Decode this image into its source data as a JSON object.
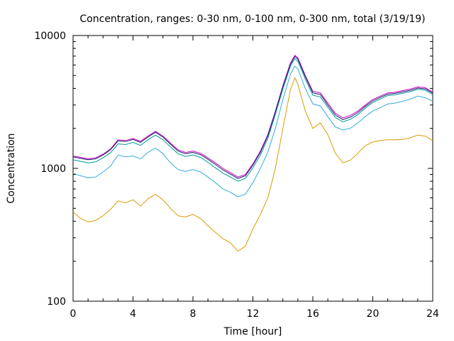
{
  "chart_data": {
    "type": "line",
    "title": "Concentration, ranges: 0-30 nm, 0-100 nm, 0-300 nm, total (3/19/19)",
    "xlabel": "Time [hour]",
    "ylabel": "Concentration",
    "xlim": [
      0,
      24
    ],
    "ylim": [
      100,
      10000
    ],
    "yscale": "log",
    "xticks": [
      0,
      4,
      8,
      12,
      16,
      20,
      24
    ],
    "yticks": [
      100,
      1000,
      10000
    ],
    "xtick_labels": [
      "0",
      "4",
      "8",
      "12",
      "16",
      "20",
      "24"
    ],
    "ytick_labels": [
      "100",
      "1000",
      "10000"
    ],
    "grid": false,
    "x": [
      0,
      0.5,
      1,
      1.5,
      2,
      2.5,
      3,
      3.5,
      4,
      4.5,
      5,
      5.5,
      6,
      6.5,
      7,
      7.5,
      8,
      8.5,
      9,
      9.5,
      10,
      10.5,
      11,
      11.5,
      12,
      12.5,
      13,
      13.5,
      14,
      14.5,
      14.8,
      15,
      15.5,
      16,
      16.5,
      17,
      17.5,
      18,
      18.5,
      19,
      19.5,
      20,
      20.5,
      21,
      21.5,
      22,
      22.5,
      23,
      23.5,
      24
    ],
    "series": [
      {
        "color": "#cc00cc",
        "values": [
          1240,
          1210,
          1180,
          1200,
          1280,
          1400,
          1640,
          1620,
          1680,
          1600,
          1750,
          1900,
          1750,
          1550,
          1380,
          1320,
          1350,
          1300,
          1200,
          1100,
          1000,
          930,
          860,
          900,
          1080,
          1350,
          1800,
          2700,
          4200,
          6200,
          7100,
          6800,
          5000,
          3800,
          3700,
          3100,
          2600,
          2400,
          2500,
          2700,
          3000,
          3300,
          3500,
          3700,
          3750,
          3850,
          3950,
          4100,
          4050,
          3750
        ]
      },
      {
        "color": "#1a1a66",
        "values": [
          1220,
          1190,
          1160,
          1180,
          1260,
          1380,
          1610,
          1590,
          1650,
          1570,
          1720,
          1870,
          1720,
          1520,
          1350,
          1290,
          1320,
          1270,
          1170,
          1070,
          975,
          905,
          840,
          880,
          1060,
          1320,
          1760,
          2650,
          4100,
          6050,
          6950,
          6650,
          4900,
          3700,
          3600,
          3000,
          2520,
          2330,
          2430,
          2630,
          2930,
          3220,
          3420,
          3620,
          3670,
          3770,
          3870,
          4020,
          3970,
          3680
        ]
      },
      {
        "color": "#009999",
        "values": [
          1160,
          1130,
          1100,
          1120,
          1200,
          1310,
          1530,
          1510,
          1570,
          1490,
          1640,
          1780,
          1640,
          1450,
          1290,
          1230,
          1260,
          1210,
          1110,
          1010,
          920,
          860,
          800,
          840,
          1010,
          1260,
          1680,
          2550,
          3950,
          5850,
          6700,
          6400,
          4700,
          3550,
          3450,
          2880,
          2420,
          2240,
          2340,
          2540,
          2840,
          3130,
          3330,
          3530,
          3580,
          3680,
          3780,
          3930,
          3880,
          3600
        ]
      },
      {
        "color": "#33aadd",
        "values": [
          920,
          880,
          850,
          860,
          940,
          1040,
          1260,
          1220,
          1240,
          1180,
          1320,
          1420,
          1290,
          1100,
          980,
          950,
          980,
          940,
          860,
          780,
          700,
          660,
          610,
          640,
          780,
          1000,
          1330,
          2000,
          3300,
          5100,
          5900,
          5600,
          4000,
          3050,
          2950,
          2450,
          2050,
          1950,
          2000,
          2200,
          2450,
          2700,
          2870,
          3050,
          3100,
          3200,
          3320,
          3500,
          3400,
          3200
        ]
      },
      {
        "color": "#dd9900",
        "values": [
          470,
          420,
          395,
          405,
          440,
          490,
          570,
          550,
          580,
          520,
          590,
          640,
          580,
          500,
          440,
          430,
          450,
          420,
          370,
          330,
          295,
          275,
          238,
          260,
          350,
          450,
          600,
          1000,
          2000,
          3900,
          4800,
          4300,
          2700,
          2000,
          2200,
          1800,
          1300,
          1100,
          1150,
          1300,
          1480,
          1580,
          1620,
          1640,
          1640,
          1650,
          1700,
          1780,
          1750,
          1620
        ]
      }
    ]
  }
}
